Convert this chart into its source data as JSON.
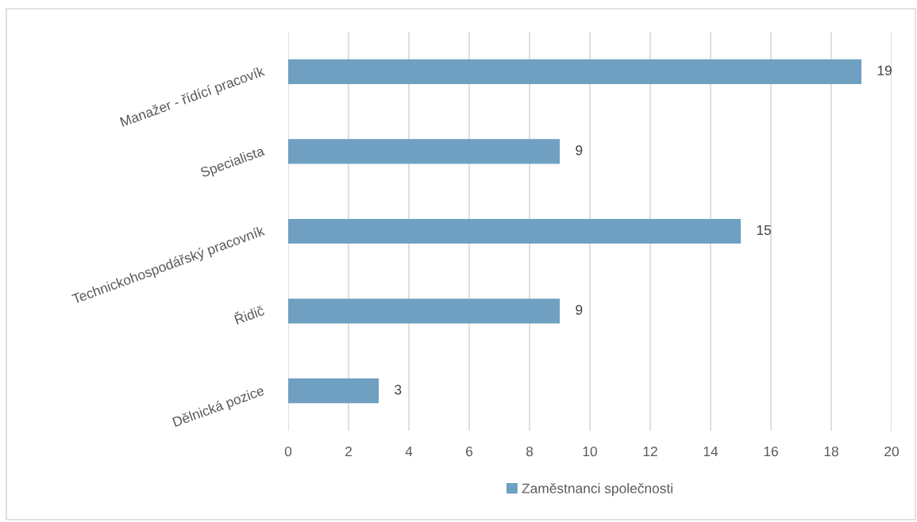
{
  "chart_data": {
    "type": "bar",
    "orientation": "horizontal",
    "categories": [
      "Manažer - řídící pracovík",
      "Specialista",
      "Technickohospodářský pracovník",
      "Řidič",
      "Dělnická pozice"
    ],
    "series": [
      {
        "name": "Zaměstnanci společnosti",
        "color": "#6fa0c2",
        "values": [
          19,
          9,
          15,
          9,
          3
        ]
      }
    ],
    "xlim": [
      0,
      20
    ],
    "xticks": [
      0,
      2,
      4,
      6,
      8,
      10,
      12,
      14,
      16,
      18,
      20
    ],
    "grid": "x",
    "legend": "bottom",
    "data_labels": true
  }
}
